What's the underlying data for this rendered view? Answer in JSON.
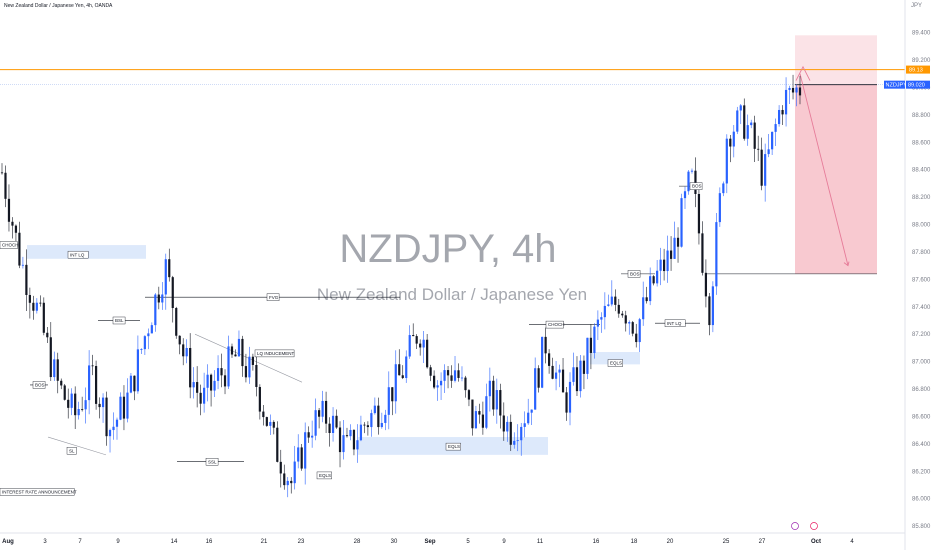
{
  "header": {
    "title": "New Zealand Dollar / Japanese Yen, 4h, OANDA",
    "currency": "JPY"
  },
  "watermark": {
    "symbol": "NZDJPY, 4h",
    "name": "New Zealand Dollar / Japanese Yen"
  },
  "price_tags": {
    "line_price": "89.13",
    "symbol_label": "NZDJPY",
    "last_price": "89.020"
  },
  "colors": {
    "bull": "#2962ff",
    "bear": "#131722",
    "price_line": "#ff9800",
    "short_zone": "#f8c9d0",
    "target_zone": "#fbe3e7",
    "arrow": "#e57b98",
    "zone_blue": "#dde9fb"
  },
  "chart_data": {
    "type": "candlestick",
    "title": "NZDJPY, 4h",
    "ylim": [
      85.75,
      89.55
    ],
    "y_ticks": [
      "89.400",
      "89.200",
      "89.000",
      "88.800",
      "88.600",
      "88.400",
      "88.200",
      "88.000",
      "87.800",
      "87.600",
      "87.400",
      "87.200",
      "87.000",
      "86.800",
      "86.600",
      "86.400",
      "86.200",
      "86.000",
      "85.800"
    ],
    "x_ticks": [
      "Aug",
      "3",
      "7",
      "9",
      "14",
      "16",
      "21",
      "23",
      "28",
      "30",
      "Sep",
      "5",
      "9",
      "11",
      "16",
      "18",
      "20",
      "25",
      "27",
      "Oct",
      "4"
    ],
    "close_series": [
      {
        "x": "Jul 30",
        "close": 88.38
      },
      {
        "x": "Jul 31",
        "close": 87.75
      },
      {
        "x": "Aug 1",
        "close": 87.35
      },
      {
        "x": "Aug 2",
        "close": 86.85
      },
      {
        "x": "Aug 5",
        "close": 86.6
      },
      {
        "x": "Aug 6",
        "close": 86.9
      },
      {
        "x": "Aug 7",
        "close": 86.5
      },
      {
        "x": "Aug 8",
        "close": 86.75
      },
      {
        "x": "Aug 9",
        "close": 87.25
      },
      {
        "x": "Aug 12",
        "close": 87.7
      },
      {
        "x": "Aug 13",
        "close": 87.05
      },
      {
        "x": "Aug 14",
        "close": 86.7
      },
      {
        "x": "Aug 15",
        "close": 86.9
      },
      {
        "x": "Aug 16",
        "close": 87.05
      },
      {
        "x": "Aug 19",
        "close": 86.85
      },
      {
        "x": "Aug 20",
        "close": 86.4
      },
      {
        "x": "Aug 21",
        "close": 86.1
      },
      {
        "x": "Aug 22",
        "close": 86.55
      },
      {
        "x": "Aug 23",
        "close": 86.6
      },
      {
        "x": "Aug 26",
        "close": 86.35
      },
      {
        "x": "Aug 27",
        "close": 86.55
      },
      {
        "x": "Aug 28",
        "close": 86.7
      },
      {
        "x": "Aug 29",
        "close": 86.9
      },
      {
        "x": "Aug 30",
        "close": 87.25
      },
      {
        "x": "Sep 2",
        "close": 86.85
      },
      {
        "x": "Sep 3",
        "close": 86.95
      },
      {
        "x": "Sep 4",
        "close": 86.55
      },
      {
        "x": "Sep 5",
        "close": 86.75
      },
      {
        "x": "Sep 6",
        "close": 86.5
      },
      {
        "x": "Sep 9",
        "close": 86.65
      },
      {
        "x": "Sep 10",
        "close": 87.15
      },
      {
        "x": "Sep 11",
        "close": 86.7
      },
      {
        "x": "Sep 12",
        "close": 86.95
      },
      {
        "x": "Sep 13",
        "close": 87.3
      },
      {
        "x": "Sep 16",
        "close": 87.45
      },
      {
        "x": "Sep 17",
        "close": 87.25
      },
      {
        "x": "Sep 18",
        "close": 87.6
      },
      {
        "x": "Sep 19",
        "close": 87.8
      },
      {
        "x": "Sep 20",
        "close": 88.35
      },
      {
        "x": "Sep 23",
        "close": 87.4
      },
      {
        "x": "Sep 24",
        "close": 88.7
      },
      {
        "x": "Sep 25",
        "close": 88.75
      },
      {
        "x": "Sep 26",
        "close": 88.35
      },
      {
        "x": "Sep 27",
        "close": 88.9
      },
      {
        "x": "Sep 30",
        "close": 89.0
      }
    ],
    "annotations": [
      {
        "text": "CHOCH",
        "price": 87.85
      },
      {
        "text": "INT LQ",
        "price": 87.78
      },
      {
        "text": "BOS",
        "price": 86.83
      },
      {
        "text": "SL",
        "price": 86.35
      },
      {
        "text": "BSL",
        "price": 87.3
      },
      {
        "text": "FVG",
        "price": 87.47
      },
      {
        "text": "LQ INDUCEMENT",
        "price": 87.06
      },
      {
        "text": "SSL",
        "price": 86.27
      },
      {
        "text": "EQLS",
        "price": 86.17
      },
      {
        "text": "EQLS",
        "price": 86.38
      },
      {
        "text": "CHOCH",
        "price": 87.27
      },
      {
        "text": "BOS",
        "price": 87.64
      },
      {
        "text": "EQLS",
        "price": 86.99
      },
      {
        "text": "INT LQ",
        "price": 87.28
      },
      {
        "text": "BOS",
        "price": 88.28
      },
      {
        "text": "INTEREST RATE ANNOUNCEMENT",
        "price": 86.05
      }
    ],
    "trade_setup": {
      "direction": "short",
      "entry": 89.02,
      "stop_top": 89.38,
      "target": 87.64
    },
    "price_line": 89.13
  }
}
